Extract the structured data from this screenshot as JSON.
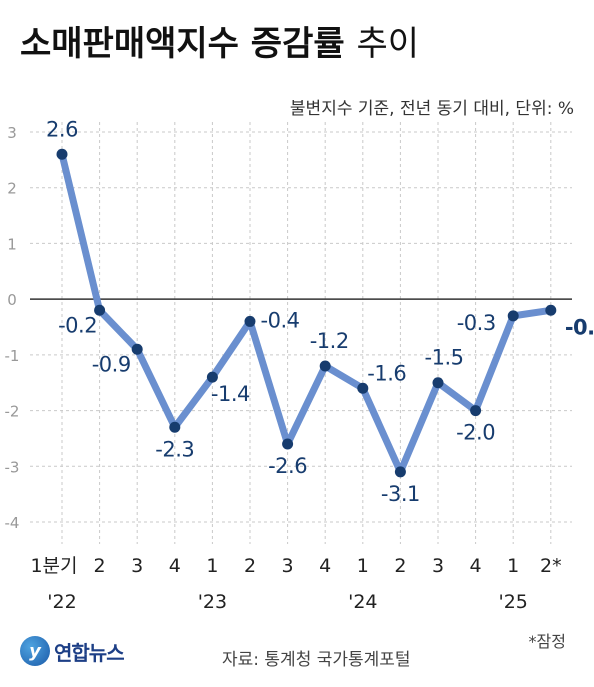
{
  "header": {
    "title_bold": "소매판매액지수 증감률",
    "title_light": "추이",
    "subtitle": "불변지수 기준, 전년 동기 대비, 단위: %"
  },
  "footer": {
    "logo_text": "연합뉴스",
    "source": "자료: 통계청 국가통계포털",
    "note": "*잠정"
  },
  "colors": {
    "line": "#6a8fcf",
    "point": "#173c6e",
    "label": "#173c6e",
    "grid": "#c9c9c9",
    "zero_line": "#333333",
    "axis_text": "#999999"
  },
  "chart_data": {
    "type": "line",
    "categories": [
      "1분기",
      "2",
      "3",
      "4",
      "1",
      "2",
      "3",
      "4",
      "1",
      "2",
      "3",
      "4",
      "1",
      "2*"
    ],
    "year_labels": [
      {
        "index": 0,
        "label": "'22"
      },
      {
        "index": 4,
        "label": "'23"
      },
      {
        "index": 8,
        "label": "'24"
      },
      {
        "index": 12,
        "label": "'25"
      }
    ],
    "values": [
      2.6,
      -0.2,
      -0.9,
      -2.3,
      -1.4,
      -0.4,
      -2.6,
      -1.2,
      -1.6,
      -3.1,
      -1.5,
      -2.0,
      -0.3,
      -0.2
    ],
    "data_labels": [
      "2.6",
      "-0.2",
      "-0.9",
      "-2.3",
      "-1.4",
      "-0.4",
      "-2.6",
      "-1.2",
      "-1.6",
      "-3.1",
      "-1.5",
      "-2.0",
      "-0.3",
      "-0.2"
    ],
    "y_ticks": [
      3,
      2,
      1,
      0,
      -1,
      -2,
      -3,
      -4
    ],
    "ylim": [
      -4,
      3
    ],
    "grid": "vertical dashed, horizontal dashed",
    "xlabel": "",
    "ylabel": ""
  }
}
